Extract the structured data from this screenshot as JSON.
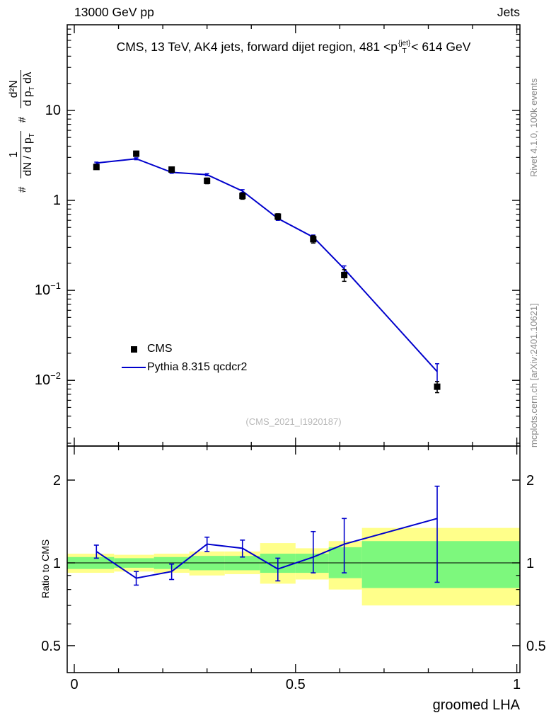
{
  "header": {
    "left": "13000 GeV pp",
    "right": "Jets"
  },
  "title": {
    "part1": "CMS, 13 TeV, AK4 jets, forward dijet region, 481 <p",
    "sup": "{jet}",
    "sub": "T",
    "part2": "< 614 GeV"
  },
  "ylabel": {
    "hash": "#",
    "f1num": "1",
    "f1den_a": "dN / d p",
    "f1den_sub": "T",
    "f2num": "d²N",
    "f2den_a": "d p",
    "f2den_sub": "T",
    "f2den_b": " dλ"
  },
  "ratio_ylabel": "Ratio to CMS",
  "xlabel": "groomed LHA",
  "watermark": "(CMS_2021_I1920187)",
  "right_labels": {
    "top": "Rivet 4.1.0, 100k events",
    "bottom": "mcplots.cern.ch [arXiv:2401.10621]"
  },
  "legend": {
    "cms": "CMS",
    "pythia": "Pythia 8.315 qcdcr2"
  },
  "chart_data": {
    "type": "line",
    "title": "CMS, 13 TeV, AK4 jets, forward dijet region, 481 < pT{jet} < 614 GeV",
    "xlabel": "groomed LHA",
    "ylabel": "# 1/(dN/dpT) d²N/(dpT dλ)",
    "ratio_ylabel": "Ratio to CMS",
    "x_axis": {
      "range": [
        0,
        1
      ],
      "major_ticks": [
        0,
        0.5,
        1
      ],
      "minor_step": 0.1
    },
    "main_axis": {
      "log": true,
      "labeled_ticks": [
        10,
        1,
        0.1,
        0.01
      ],
      "range": [
        0.002,
        89
      ]
    },
    "ratio_axis": {
      "log": true,
      "labeled_ticks": [
        0.5,
        1,
        2
      ],
      "minor_ticks": [
        0.6,
        0.7,
        0.8,
        0.9
      ],
      "range": [
        0.4,
        2.66
      ]
    },
    "series_x": [
      0.05,
      0.14,
      0.22,
      0.3,
      0.38,
      0.46,
      0.54,
      0.61,
      0.82
    ],
    "cms": {
      "label": "CMS",
      "y": [
        2.35,
        3.3,
        2.2,
        1.65,
        1.12,
        0.66,
        0.37,
        0.148,
        0.0085
      ],
      "yerr": [
        0.12,
        0.22,
        0.12,
        0.12,
        0.09,
        0.05,
        0.035,
        0.022,
        0.0012
      ]
    },
    "pythia": {
      "label": "Pythia 8.315 qcdcr2",
      "y": [
        2.6,
        2.9,
        2.05,
        1.93,
        1.27,
        0.63,
        0.39,
        0.173,
        0.0125
      ],
      "yerr": [
        0.06,
        0.07,
        0.05,
        0.05,
        0.045,
        0.03,
        0.022,
        0.014,
        0.0028
      ]
    },
    "ratio": {
      "y": [
        1.1,
        0.88,
        0.93,
        1.17,
        1.13,
        0.95,
        1.05,
        1.17,
        1.45
      ],
      "yerr_lo": [
        0.06,
        0.05,
        0.06,
        0.07,
        0.08,
        0.09,
        0.13,
        0.25,
        0.6
      ],
      "yerr_hi": [
        0.06,
        0.05,
        0.06,
        0.07,
        0.08,
        0.09,
        0.25,
        0.28,
        0.45
      ]
    },
    "bands": {
      "edges": [
        0,
        0.09,
        0.18,
        0.26,
        0.34,
        0.42,
        0.5,
        0.575,
        0.65,
        1.0
      ],
      "yellow": [
        [
          0.92,
          1.08
        ],
        [
          0.93,
          1.07
        ],
        [
          0.92,
          1.08
        ],
        [
          0.9,
          1.1
        ],
        [
          0.91,
          1.1
        ],
        [
          0.84,
          1.18
        ],
        [
          0.87,
          1.13
        ],
        [
          0.8,
          1.2
        ],
        [
          0.7,
          1.34
        ]
      ],
      "green": [
        [
          0.95,
          1.05
        ],
        [
          0.96,
          1.04
        ],
        [
          0.95,
          1.05
        ],
        [
          0.94,
          1.06
        ],
        [
          0.94,
          1.06
        ],
        [
          0.92,
          1.08
        ],
        [
          0.92,
          1.08
        ],
        [
          0.88,
          1.14
        ],
        [
          0.81,
          1.2
        ]
      ]
    },
    "colors": {
      "line": "#0000cc",
      "band_outer": "#ffff8a",
      "band_inner": "#7df87d",
      "marker": "#000000"
    }
  }
}
